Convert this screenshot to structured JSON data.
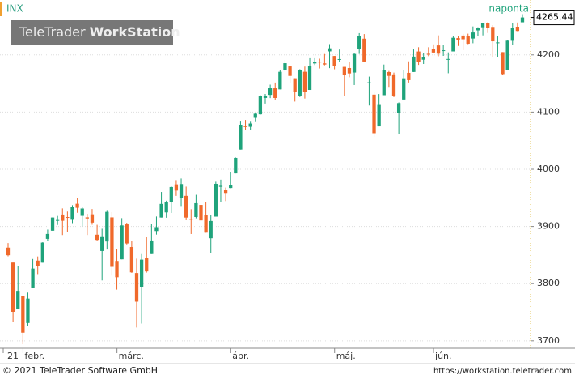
{
  "chart_data": {
    "type": "candlestick",
    "symbol": "INX",
    "interval": "naponta",
    "watermark": {
      "brand": "TeleTrader",
      "product": "WorkStation"
    },
    "categories": [
      "'21",
      null,
      null,
      null,
      "febr.",
      null,
      null,
      null,
      null,
      null,
      null,
      null,
      null,
      null,
      null,
      null,
      null,
      null,
      null,
      null,
      null,
      null,
      null,
      "márc.",
      null,
      null,
      null,
      null,
      null,
      null,
      null,
      null,
      null,
      null,
      null,
      null,
      null,
      null,
      null,
      null,
      null,
      null,
      null,
      null,
      null,
      null,
      "ápr.",
      null,
      null,
      null,
      null,
      null,
      null,
      null,
      null,
      null,
      null,
      null,
      null,
      null,
      null,
      null,
      null,
      null,
      null,
      null,
      null,
      "máj.",
      null,
      null,
      null,
      null,
      null,
      null,
      null,
      null,
      null,
      null,
      null,
      null,
      null,
      null,
      null,
      null,
      null,
      null,
      null,
      "jún.",
      null,
      null,
      null,
      null,
      null,
      null,
      null,
      null,
      null,
      null,
      null,
      null,
      null,
      null,
      null,
      null,
      null
    ],
    "open": [
      3862.96,
      3836.83,
      3755.75,
      3778.05,
      3731.17,
      3791.84,
      3840.27,
      3836.66,
      3878.3,
      3892.59,
      3910.49,
      3920.78,
      3916.4,
      3911.65,
      3939.61,
      3918.5,
      3915.86,
      3921.16,
      3885.55,
      3857.07,
      3873.71,
      3915.8,
      3839.66,
      3842.51,
      3903.64,
      3863.99,
      3818.53,
      3793.58,
      3844.39,
      3851.69,
      3891.99,
      3915.54,
      3924.52,
      3942.96,
      3973.59,
      3949.57,
      3953.5,
      3913.14,
      3916.48,
      3937.6,
      3919.93,
      3879.34,
      3917.12,
      3969.31,
      3963.34,
      3967.25,
      3992.78,
      4034.44,
      4075.57,
      4074.29,
      4089.95,
      4096.11,
      4124.71,
      4130.1,
      4141.58,
      4139.76,
      4174.14,
      4179.8,
      4159.18,
      4128.42,
      4170.46,
      4138.78,
      4185.03,
      4188.25,
      4185.14,
      4206.14,
      4198.1,
      4191.98,
      4179.04,
      4177.06,
      4169.14,
      4210.34,
      4228.29,
      4150.34,
      4130.55,
      4074.99,
      4129.58,
      4169.92,
      4165.94,
      4098.45,
      4121.97,
      4168.61,
      4170.16,
      4205.94,
      4191.59,
      4201.94,
      4210.77,
      4216.52,
      4206.82,
      4191.43,
      4206.05,
      4229.34,
      4233.81,
      4232.99,
      4228.56,
      4242.9,
      4248.31,
      4255.28,
      4248.87,
      4220.37,
      4204.78,
      4173.4,
      4224.61,
      4249.27,
      4256.97
    ],
    "high": [
      3870.9,
      3836.83,
      3830.5,
      3778.05,
      3784.32,
      3843.09,
      3847.51,
      3872.42,
      3894.56,
      3915.77,
      3918.35,
      3931.5,
      3925.99,
      3937.23,
      3950.43,
      3933.61,
      3921.98,
      3930.41,
      3902.92,
      3895.98,
      3928.65,
      3925.02,
      3861.08,
      3914.5,
      3906.41,
      3874.47,
      3843.67,
      3851.69,
      3881.06,
      3903.76,
      3917.35,
      3960.27,
      3944.99,
      3970.08,
      3981.04,
      3983.87,
      3969.62,
      3930.12,
      3955.31,
      3949.13,
      3942.08,
      3919.54,
      3978.19,
      3981.83,
      3968.01,
      3994.41,
      4020.63,
      4083.42,
      4086.23,
      4083.13,
      4098.19,
      4129.48,
      4131.76,
      4148.0,
      4151.69,
      4173.49,
      4191.31,
      4180.81,
      4159.18,
      4175.02,
      4179.57,
      4194.17,
      4194.19,
      4193.35,
      4201.53,
      4218.78,
      4198.1,
      4209.39,
      4179.04,
      4187.72,
      4202.7,
      4238.04,
      4236.39,
      4162.04,
      4134.73,
      4131.58,
      4183.13,
      4171.92,
      4169.15,
      4116.93,
      4172.8,
      4188.72,
      4209.52,
      4213.42,
      4202.61,
      4213.38,
      4218.36,
      4234.12,
      4217.37,
      4204.39,
      4233.45,
      4232.34,
      4236.74,
      4237.09,
      4249.74,
      4248.38,
      4255.59,
      4257.16,
      4251.89,
      4232.29,
      4204.78,
      4226.24,
      4255.84,
      4256.6,
      4271.28
    ],
    "low": [
      3847.78,
      3732.48,
      3755.75,
      3694.12,
      3725.62,
      3791.84,
      3816.68,
      3836.66,
      3874.93,
      3892.59,
      3902.64,
      3884.94,
      3890.39,
      3905.78,
      3923.85,
      3900.43,
      3885.03,
      3903.07,
      3874.71,
      3805.59,
      3859.6,
      3814.04,
      3789.54,
      3842.51,
      3868.57,
      3818.86,
      3723.34,
      3730.19,
      3819.25,
      3851.69,
      3885.73,
      3915.54,
      3915.21,
      3923.54,
      3953.44,
      3935.74,
      3910.86,
      3886.75,
      3914.16,
      3901.57,
      3889.07,
      3853.5,
      3917.12,
      3943.25,
      3944.35,
      3966.98,
      3992.78,
      4034.44,
      4068.14,
      4068.31,
      4082.54,
      4095.51,
      4114.82,
      4124.43,
      4120.87,
      4139.76,
      4170.75,
      4150.47,
      4118.38,
      4126.35,
      4123.69,
      4138.78,
      4182.36,
      4176.22,
      4181.78,
      4176.81,
      4174.85,
      4188.03,
      4128.59,
      4160.94,
      4147.33,
      4201.64,
      4188.13,
      4111.53,
      4056.88,
      4074.99,
      4129.58,
      4142.69,
      4125.99,
      4061.41,
      4121.97,
      4151.72,
      4170.16,
      4182.52,
      4184.11,
      4197.78,
      4203.57,
      4197.59,
      4198.27,
      4167.93,
      4206.05,
      4215.66,
      4208.41,
      4218.74,
      4220.34,
      4232.25,
      4234.07,
      4238.35,
      4196.3,
      4196.05,
      4164.4,
      4173.4,
      4217.27,
      4241.43,
      4256.97
    ],
    "close": [
      3849.62,
      3750.77,
      3787.38,
      3714.24,
      3773.86,
      3826.31,
      3830.17,
      3871.74,
      3886.83,
      3915.59,
      3911.23,
      3909.88,
      3916.38,
      3934.83,
      3932.59,
      3931.33,
      3913.97,
      3906.71,
      3876.5,
      3881.37,
      3925.43,
      3829.34,
      3811.15,
      3901.82,
      3870.29,
      3819.72,
      3768.47,
      3841.94,
      3821.35,
      3875.44,
      3898.81,
      3939.34,
      3943.34,
      3968.94,
      3962.71,
      3974.12,
      3915.46,
      3913.1,
      3940.59,
      3910.52,
      3889.14,
      3909.52,
      3974.54,
      3971.09,
      3958.55,
      3972.89,
      4019.87,
      4077.91,
      4073.94,
      4079.95,
      4097.17,
      4128.8,
      4127.99,
      4141.59,
      4124.66,
      4170.42,
      4185.47,
      4163.26,
      4134.94,
      4173.42,
      4134.98,
      4180.17,
      4187.62,
      4186.72,
      4183.18,
      4211.47,
      4181.17,
      4192.66,
      4164.66,
      4167.59,
      4201.62,
      4232.6,
      4188.43,
      4152.1,
      4063.04,
      4112.5,
      4173.85,
      4163.29,
      4127.83,
      4115.68,
      4159.12,
      4155.86,
      4197.05,
      4188.13,
      4195.99,
      4200.88,
      4204.11,
      4202.04,
      4208.12,
      4192.85,
      4229.89,
      4226.52,
      4227.26,
      4219.55,
      4239.18,
      4247.44,
      4255.15,
      4246.59,
      4223.7,
      4221.86,
      4166.45,
      4224.79,
      4246.44,
      4241.84,
      4265.44
    ],
    "last_price": {
      "value": 4265.44,
      "label": "4265,44"
    },
    "up_color": "#1fa37b",
    "down_color": "#f0692b",
    "ylim": [
      3687,
      4296
    ],
    "yticks": [
      3700,
      3800,
      3900,
      4000,
      4100,
      4200
    ],
    "grid": true
  },
  "footer": {
    "copyright": "© 2021 TeleTrader Software GmbH",
    "url": "https://workstation.teletrader.com"
  }
}
